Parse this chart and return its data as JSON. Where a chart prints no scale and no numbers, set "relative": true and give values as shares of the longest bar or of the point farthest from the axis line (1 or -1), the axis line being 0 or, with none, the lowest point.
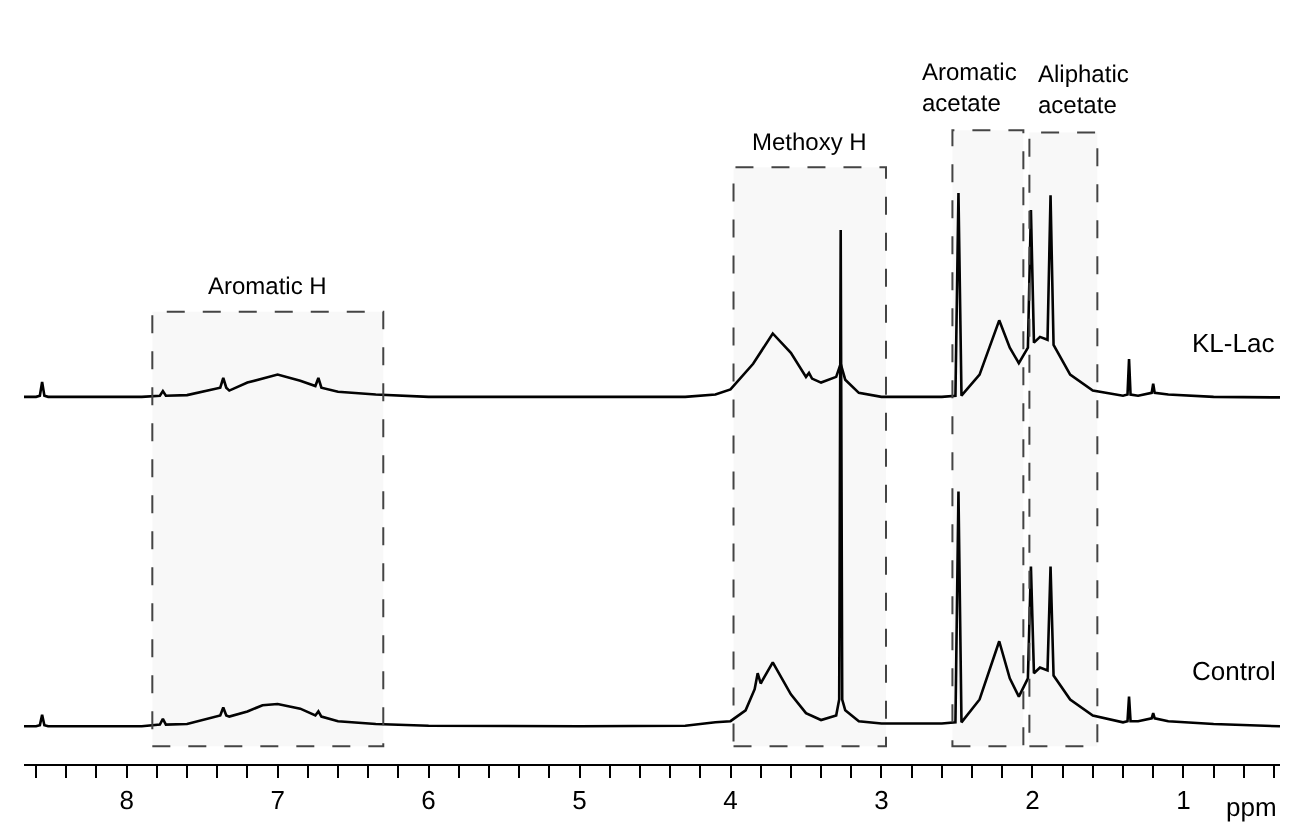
{
  "chart_data": {
    "type": "line",
    "relative": true,
    "xlabel": "ppm",
    "xlim": [
      8.68,
      0.36
    ],
    "xticks": [
      {
        "value": 8.6,
        "label": null
      },
      {
        "value": 8.4,
        "label": null
      },
      {
        "value": 8.2,
        "label": null
      },
      8,
      {
        "value": 7.8,
        "label": null
      },
      {
        "value": 7.6,
        "label": null
      },
      {
        "value": 7.4,
        "label": null
      },
      {
        "value": 7.2,
        "label": null
      },
      7,
      {
        "value": 6.8,
        "label": null
      },
      {
        "value": 6.6,
        "label": null
      },
      {
        "value": 6.4,
        "label": null
      },
      {
        "value": 6.2,
        "label": null
      },
      6,
      {
        "value": 5.8,
        "label": null
      },
      {
        "value": 5.6,
        "label": null
      },
      {
        "value": 5.4,
        "label": null
      },
      {
        "value": 5.2,
        "label": null
      },
      5,
      {
        "value": 4.8,
        "label": null
      },
      {
        "value": 4.6,
        "label": null
      },
      {
        "value": 4.4,
        "label": null
      },
      {
        "value": 4.2,
        "label": null
      },
      4,
      {
        "value": 3.8,
        "label": null
      },
      {
        "value": 3.6,
        "label": null
      },
      {
        "value": 3.4,
        "label": null
      },
      {
        "value": 3.2,
        "label": null
      },
      3,
      {
        "value": 2.8,
        "label": null
      },
      {
        "value": 2.6,
        "label": null
      },
      {
        "value": 2.4,
        "label": null
      },
      {
        "value": 2.2,
        "label": null
      },
      2,
      {
        "value": 1.8,
        "label": null
      },
      {
        "value": 1.6,
        "label": null
      },
      {
        "value": 1.4,
        "label": null
      },
      {
        "value": 1.2,
        "label": null
      },
      1,
      {
        "value": 0.8,
        "label": null
      },
      {
        "value": 0.6,
        "label": null
      },
      {
        "value": 0.4,
        "label": null
      }
    ],
    "legend": false,
    "marker": "none",
    "line_style": "solid",
    "series": [
      {
        "name": "KL-Lac",
        "color": "#000000",
        "x": [
          8.68,
          8.6,
          8.575,
          8.56,
          8.545,
          8.52,
          7.9,
          7.78,
          7.76,
          7.74,
          7.6,
          7.38,
          7.36,
          7.34,
          7.32,
          7.2,
          7.0,
          6.85,
          6.75,
          6.73,
          6.71,
          6.6,
          6.35,
          6.0,
          5.0,
          4.3,
          4.1,
          4.0,
          3.85,
          3.72,
          3.6,
          3.5,
          3.48,
          3.46,
          3.4,
          3.3,
          3.27,
          3.24,
          3.15,
          3.0,
          2.6,
          2.51,
          2.49,
          2.47,
          2.35,
          2.22,
          2.15,
          2.09,
          2.03,
          2.01,
          1.99,
          1.95,
          1.9,
          1.88,
          1.86,
          1.75,
          1.6,
          1.4,
          1.37,
          1.36,
          1.35,
          1.3,
          1.21,
          1.2,
          1.19,
          1.1,
          0.8,
          0.36
        ],
        "values": [
          0.643,
          0.643,
          0.645,
          0.669,
          0.645,
          0.643,
          0.643,
          0.645,
          0.653,
          0.645,
          0.646,
          0.659,
          0.676,
          0.659,
          0.654,
          0.668,
          0.682,
          0.671,
          0.662,
          0.676,
          0.659,
          0.652,
          0.647,
          0.643,
          0.643,
          0.643,
          0.647,
          0.656,
          0.701,
          0.754,
          0.72,
          0.678,
          0.685,
          0.675,
          0.668,
          0.678,
          0.701,
          0.673,
          0.65,
          0.643,
          0.643,
          0.645,
          1.0,
          0.645,
          0.682,
          0.777,
          0.729,
          0.702,
          0.729,
          0.97,
          0.738,
          0.748,
          0.743,
          0.996,
          0.734,
          0.682,
          0.654,
          0.645,
          0.647,
          0.709,
          0.647,
          0.645,
          0.65,
          0.666,
          0.65,
          0.647,
          0.643,
          0.642
        ]
      },
      {
        "name": "Control",
        "color": "#000000",
        "x": [
          8.68,
          8.6,
          8.575,
          8.56,
          8.545,
          8.52,
          7.9,
          7.78,
          7.76,
          7.74,
          7.6,
          7.38,
          7.36,
          7.34,
          7.32,
          7.2,
          7.1,
          7.0,
          6.85,
          6.75,
          6.73,
          6.71,
          6.6,
          6.35,
          6.0,
          5.0,
          4.3,
          4.1,
          4.0,
          3.9,
          3.84,
          3.82,
          3.8,
          3.72,
          3.6,
          3.5,
          3.4,
          3.3,
          3.28,
          3.27,
          3.26,
          3.24,
          3.15,
          3.0,
          2.6,
          2.51,
          2.49,
          2.47,
          2.35,
          2.22,
          2.15,
          2.09,
          2.03,
          2.01,
          1.99,
          1.95,
          1.9,
          1.88,
          1.86,
          1.75,
          1.6,
          1.4,
          1.37,
          1.36,
          1.35,
          1.3,
          1.21,
          1.2,
          1.19,
          1.1,
          0.8,
          0.36
        ],
        "values": [
          0.066,
          0.066,
          0.068,
          0.086,
          0.068,
          0.066,
          0.066,
          0.069,
          0.079,
          0.069,
          0.07,
          0.085,
          0.099,
          0.085,
          0.083,
          0.092,
          0.103,
          0.105,
          0.097,
          0.085,
          0.092,
          0.083,
          0.075,
          0.07,
          0.067,
          0.066,
          0.067,
          0.073,
          0.075,
          0.094,
          0.131,
          0.159,
          0.141,
          0.178,
          0.122,
          0.089,
          0.077,
          0.085,
          0.113,
          0.935,
          0.113,
          0.094,
          0.075,
          0.071,
          0.071,
          0.073,
          0.477,
          0.073,
          0.113,
          0.215,
          0.15,
          0.118,
          0.15,
          0.346,
          0.159,
          0.169,
          0.164,
          0.346,
          0.155,
          0.113,
          0.085,
          0.073,
          0.075,
          0.118,
          0.075,
          0.075,
          0.08,
          0.089,
          0.08,
          0.075,
          0.07,
          0.066
        ]
      }
    ],
    "bands": [
      {
        "axis": "x",
        "from": 7.83,
        "to": 6.3,
        "label": "Aromatic H",
        "color": "#444444"
      },
      {
        "axis": "x",
        "from": 3.98,
        "to": 2.97,
        "label": "Methoxy H",
        "color": "#444444"
      },
      {
        "axis": "x",
        "from": 2.53,
        "to": 2.06,
        "label": "Aromatic\nacetate",
        "color": "#444444"
      },
      {
        "axis": "x",
        "from": 2.02,
        "to": 1.57,
        "label": "Aliphatic\nacetate",
        "color": "#444444"
      }
    ]
  }
}
